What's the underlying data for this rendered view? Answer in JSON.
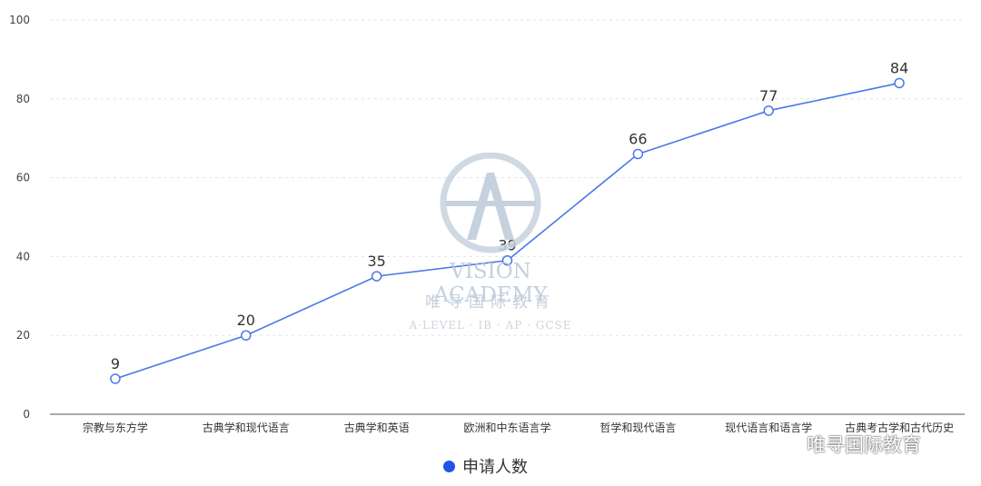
{
  "chart_data": {
    "type": "line",
    "categories": [
      "宗教与东方学",
      "古典学和现代语言",
      "古典学和英语",
      "欧洲和中东语言学",
      "哲学和现代语言",
      "现代语言和语言学",
      "古典考古学和古代历史"
    ],
    "series": [
      {
        "name": "申请人数",
        "values": [
          9,
          20,
          35,
          39,
          66,
          77,
          84
        ],
        "color": "#4a78e8"
      }
    ],
    "ylim": [
      0,
      100
    ],
    "yticks": [
      0,
      20,
      40,
      60,
      80,
      100
    ],
    "grid": true,
    "legend_position": "bottom-center",
    "data_labels": true,
    "legend_dot_color": "#2155e6"
  },
  "watermark": {
    "logo_letter": "A",
    "title": "VISION ACADEMY",
    "chinese": "唯寻国际教育",
    "subtitle": "A·LEVEL · IB · AP · GCSE"
  },
  "wechat_badge": {
    "icon": "wechat-icon",
    "text": "唯寻国际教育"
  }
}
